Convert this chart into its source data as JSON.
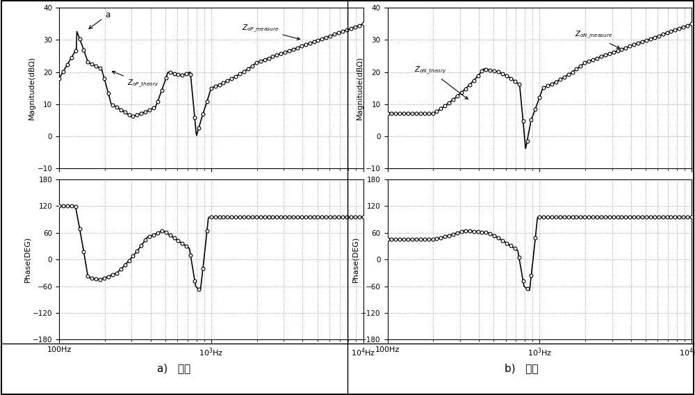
{
  "fig_width": 10.0,
  "fig_height": 5.68,
  "dpi": 100,
  "freq_min": 100,
  "freq_max": 10000,
  "mag_ylim": [
    -10,
    40
  ],
  "mag_yticks": [
    -10,
    0,
    10,
    20,
    30,
    40
  ],
  "phase_ylim": [
    -180,
    180
  ],
  "phase_yticks": [
    -180,
    -120,
    -60,
    0,
    60,
    120,
    180
  ],
  "mag_ylabel": "Magnitude(dBΩ)",
  "phase_ylabel": "Phase(DEG)",
  "caption_a": "a)   正序",
  "caption_b": "b)   负序",
  "line_color": "#000000",
  "bg_color": "#ffffff",
  "grid_color": "#888888"
}
